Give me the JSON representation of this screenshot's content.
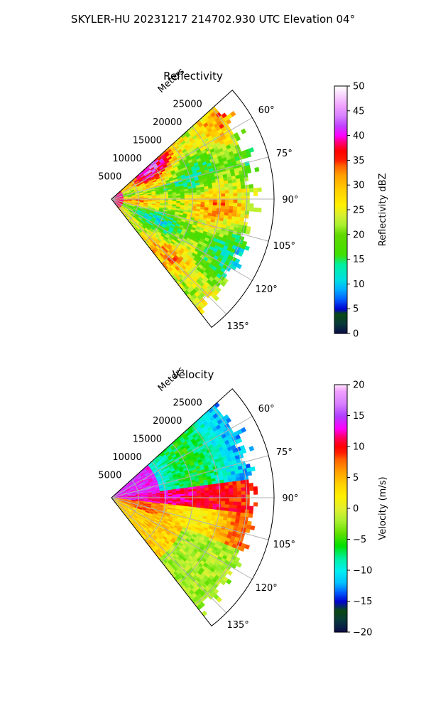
{
  "figure_title": "SKYLER-HU  20231217  214702.930 UTC Elevation 04°",
  "chart_data": [
    {
      "type": "heatmap",
      "projection": "polar-sector",
      "title": "Reflectivity",
      "radial_axis_label": "Meters",
      "radial_ticks": [
        5000,
        10000,
        15000,
        20000,
        25000
      ],
      "radial_tick_labels": [
        "5000",
        "10000",
        "15000",
        "20000",
        "25000"
      ],
      "radial_range": [
        0,
        30000
      ],
      "azimuth_range_deg": [
        48,
        142
      ],
      "azimuth_ticks_deg": [
        60,
        75,
        90,
        105,
        120,
        135
      ],
      "azimuth_tick_labels": [
        "60°",
        "75°",
        "90°",
        "105°",
        "120°",
        "135°"
      ],
      "grid": true,
      "colorbar": {
        "label": "Reflectivity dBZ",
        "range": [
          0,
          50
        ],
        "ticks": [
          0,
          5,
          10,
          15,
          20,
          25,
          30,
          35,
          40,
          45,
          50
        ],
        "tick_labels": [
          "0",
          "5",
          "10",
          "15",
          "20",
          "25",
          "30",
          "35",
          "40",
          "45",
          "50"
        ],
        "stops": [
          [
            0,
            "#0a0a4a"
          ],
          [
            2,
            "#083a3a"
          ],
          [
            4,
            "#0a4a10"
          ],
          [
            5,
            "#0000d0"
          ],
          [
            7,
            "#0060ff"
          ],
          [
            9,
            "#00b0ff"
          ],
          [
            11,
            "#00e0e0"
          ],
          [
            14,
            "#00f0a0"
          ],
          [
            16,
            "#40e000"
          ],
          [
            20,
            "#60d800"
          ],
          [
            22,
            "#a8f030"
          ],
          [
            24,
            "#d8f030"
          ],
          [
            26,
            "#fff000"
          ],
          [
            29,
            "#ffd000"
          ],
          [
            32,
            "#ffa000"
          ],
          [
            34,
            "#ff6000"
          ],
          [
            35,
            "#ff2000"
          ],
          [
            37,
            "#ff0000"
          ],
          [
            39,
            "#ff0090"
          ],
          [
            40,
            "#ff00ff"
          ],
          [
            42,
            "#c040ff"
          ],
          [
            44,
            "#d880ff"
          ],
          [
            46,
            "#f0a0ff"
          ],
          [
            48,
            "#f8d0ff"
          ],
          [
            50,
            "#ffffff"
          ]
        ]
      }
    },
    {
      "type": "heatmap",
      "projection": "polar-sector",
      "title": "Velocity",
      "radial_axis_label": "Meters",
      "radial_ticks": [
        5000,
        10000,
        15000,
        20000,
        25000
      ],
      "radial_tick_labels": [
        "5000",
        "10000",
        "15000",
        "20000",
        "25000"
      ],
      "radial_range": [
        0,
        30000
      ],
      "azimuth_range_deg": [
        48,
        142
      ],
      "azimuth_ticks_deg": [
        60,
        75,
        90,
        105,
        120,
        135
      ],
      "azimuth_tick_labels": [
        "60°",
        "75°",
        "90°",
        "105°",
        "120°",
        "135°"
      ],
      "grid": true,
      "colorbar": {
        "label": "Velocity (m/s)",
        "range": [
          -20,
          20
        ],
        "ticks": [
          -20,
          -15,
          -10,
          -5,
          0,
          5,
          10,
          15,
          20
        ],
        "tick_labels": [
          "−20",
          "−15",
          "−10",
          "−5",
          "0",
          "5",
          "10",
          "15",
          "20"
        ],
        "stops": [
          [
            -20,
            "#0a0a4a"
          ],
          [
            -18,
            "#083a3a"
          ],
          [
            -16.5,
            "#0a4a10"
          ],
          [
            -15,
            "#0000d0"
          ],
          [
            -13.5,
            "#0060ff"
          ],
          [
            -12,
            "#00c0ff"
          ],
          [
            -10,
            "#00f0f0"
          ],
          [
            -8,
            "#00f0a0"
          ],
          [
            -6,
            "#00e000"
          ],
          [
            -4,
            "#60e000"
          ],
          [
            -2,
            "#a8f030"
          ],
          [
            0,
            "#e0f030"
          ],
          [
            2,
            "#fff000"
          ],
          [
            4,
            "#ffd000"
          ],
          [
            6,
            "#ffa000"
          ],
          [
            8,
            "#ff6000"
          ],
          [
            9,
            "#ff2000"
          ],
          [
            10,
            "#ff0000"
          ],
          [
            11.5,
            "#ff0060"
          ],
          [
            13,
            "#ff00ff"
          ],
          [
            15,
            "#b040ff"
          ],
          [
            17,
            "#d880ff"
          ],
          [
            19,
            "#f0a0ff"
          ],
          [
            20,
            "#ffe0ff"
          ]
        ]
      }
    }
  ]
}
